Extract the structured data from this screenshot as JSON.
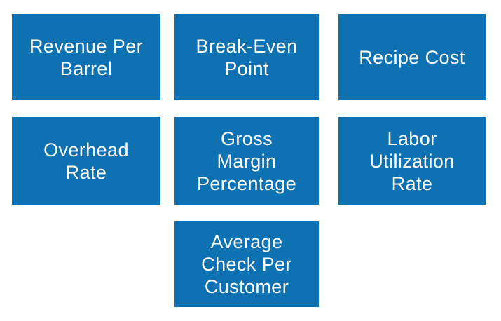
{
  "colors": {
    "box_fill": "#0e72b2",
    "box_text": "#ffffff",
    "background": "#ffffff"
  },
  "diagram": {
    "description": "Seven flat blue rectangular tiles arranged in a 3x3 grid (rows of 3, 3, 1-centered), each naming a business metric",
    "boxes": [
      {
        "id": "revenue-per-barrel",
        "label": "Revenue Per\nBarrel"
      },
      {
        "id": "break-even-point",
        "label": "Break-Even\nPoint"
      },
      {
        "id": "recipe-cost",
        "label": "Recipe Cost"
      },
      {
        "id": "overhead-rate",
        "label": "Overhead\nRate"
      },
      {
        "id": "gross-margin-percentage",
        "label": "Gross\nMargin\nPercentage"
      },
      {
        "id": "labor-utilization-rate",
        "label": "Labor\nUtilization\nRate"
      },
      {
        "id": "average-check-per-customer",
        "label": "Average\nCheck Per\nCustomer"
      }
    ]
  }
}
